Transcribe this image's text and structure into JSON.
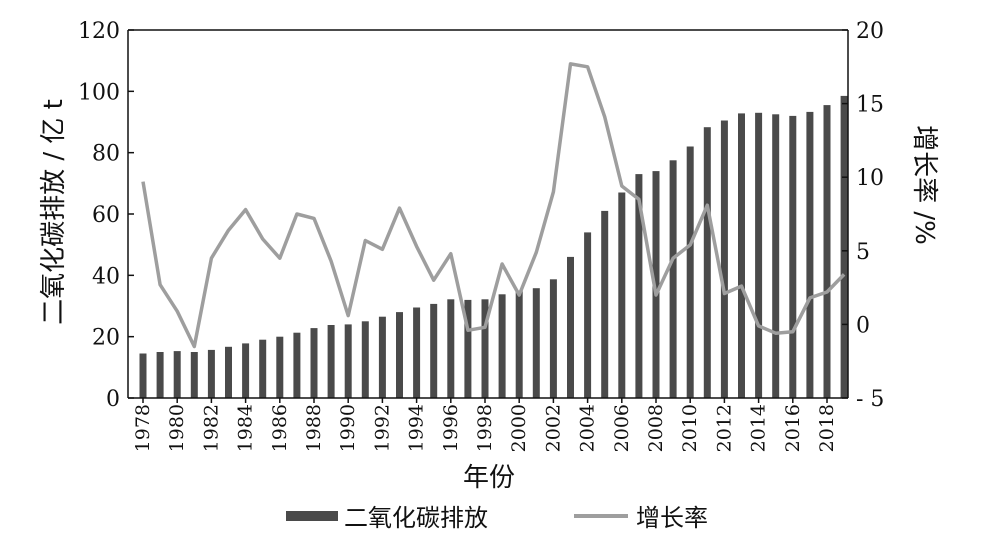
{
  "chart_data": {
    "type": "bar",
    "xlabel": "年份",
    "ylabel_left": "二氧化碳排放 / 亿 t",
    "ylabel_right": "增长率 /%",
    "ylim_left": [
      0,
      120
    ],
    "yticks_left": [
      0,
      20,
      40,
      60,
      80,
      100,
      120
    ],
    "ylim_right": [
      -5,
      20
    ],
    "yticks_right": [
      -5,
      0,
      5,
      10,
      15,
      20
    ],
    "xtick_labels": [
      "1978",
      "1980",
      "1982",
      "1984",
      "1986",
      "1988",
      "1990",
      "1992",
      "1994",
      "1996",
      "1998",
      "2000",
      "2002",
      "2004",
      "2006",
      "2008",
      "2010",
      "2012",
      "2014",
      "2016",
      "2018"
    ],
    "legend_position": "bottom",
    "grid": false,
    "colors": {
      "bar": "#4a4a4a",
      "line": "#9e9e9e",
      "axis": "#111111"
    },
    "x": [
      1978,
      1979,
      1980,
      1981,
      1982,
      1983,
      1984,
      1985,
      1986,
      1987,
      1988,
      1989,
      1990,
      1991,
      1992,
      1993,
      1994,
      1995,
      1996,
      1997,
      1998,
      1999,
      2000,
      2001,
      2002,
      2003,
      2004,
      2005,
      2006,
      2007,
      2008,
      2009,
      2010,
      2011,
      2012,
      2013,
      2014,
      2015,
      2016,
      2017,
      2018,
      2019
    ],
    "series": [
      {
        "name": "二氧化碳排放",
        "kind": "bar",
        "axis": "left",
        "values": [
          14.5,
          15,
          15.3,
          15,
          15.7,
          16.7,
          17.8,
          19,
          20,
          21.3,
          22.8,
          23.8,
          24,
          25,
          26.5,
          28,
          29.5,
          30.7,
          32.2,
          32,
          32.2,
          33.8,
          35,
          35.8,
          38.7,
          46,
          54,
          61,
          67,
          73,
          74,
          77.5,
          82,
          88.3,
          90.5,
          92.8,
          93,
          92.5,
          92,
          93.3,
          95.5,
          98.5
        ]
      },
      {
        "name": "增长率",
        "kind": "line",
        "axis": "right",
        "values": [
          9.7,
          2.7,
          0.9,
          -1.5,
          4.5,
          6.4,
          7.8,
          5.8,
          4.5,
          7.5,
          7.2,
          4.3,
          0.6,
          5.7,
          5.1,
          7.9,
          5.3,
          3,
          4.8,
          -0.4,
          -0.2,
          4.1,
          2,
          4.9,
          9,
          17.7,
          17.5,
          14.1,
          9.4,
          8.5,
          2,
          4.5,
          5.4,
          8.1,
          2.1,
          2.6,
          -0.1,
          -0.6,
          -0.5,
          1.8,
          2.2,
          3.4
        ]
      }
    ]
  }
}
